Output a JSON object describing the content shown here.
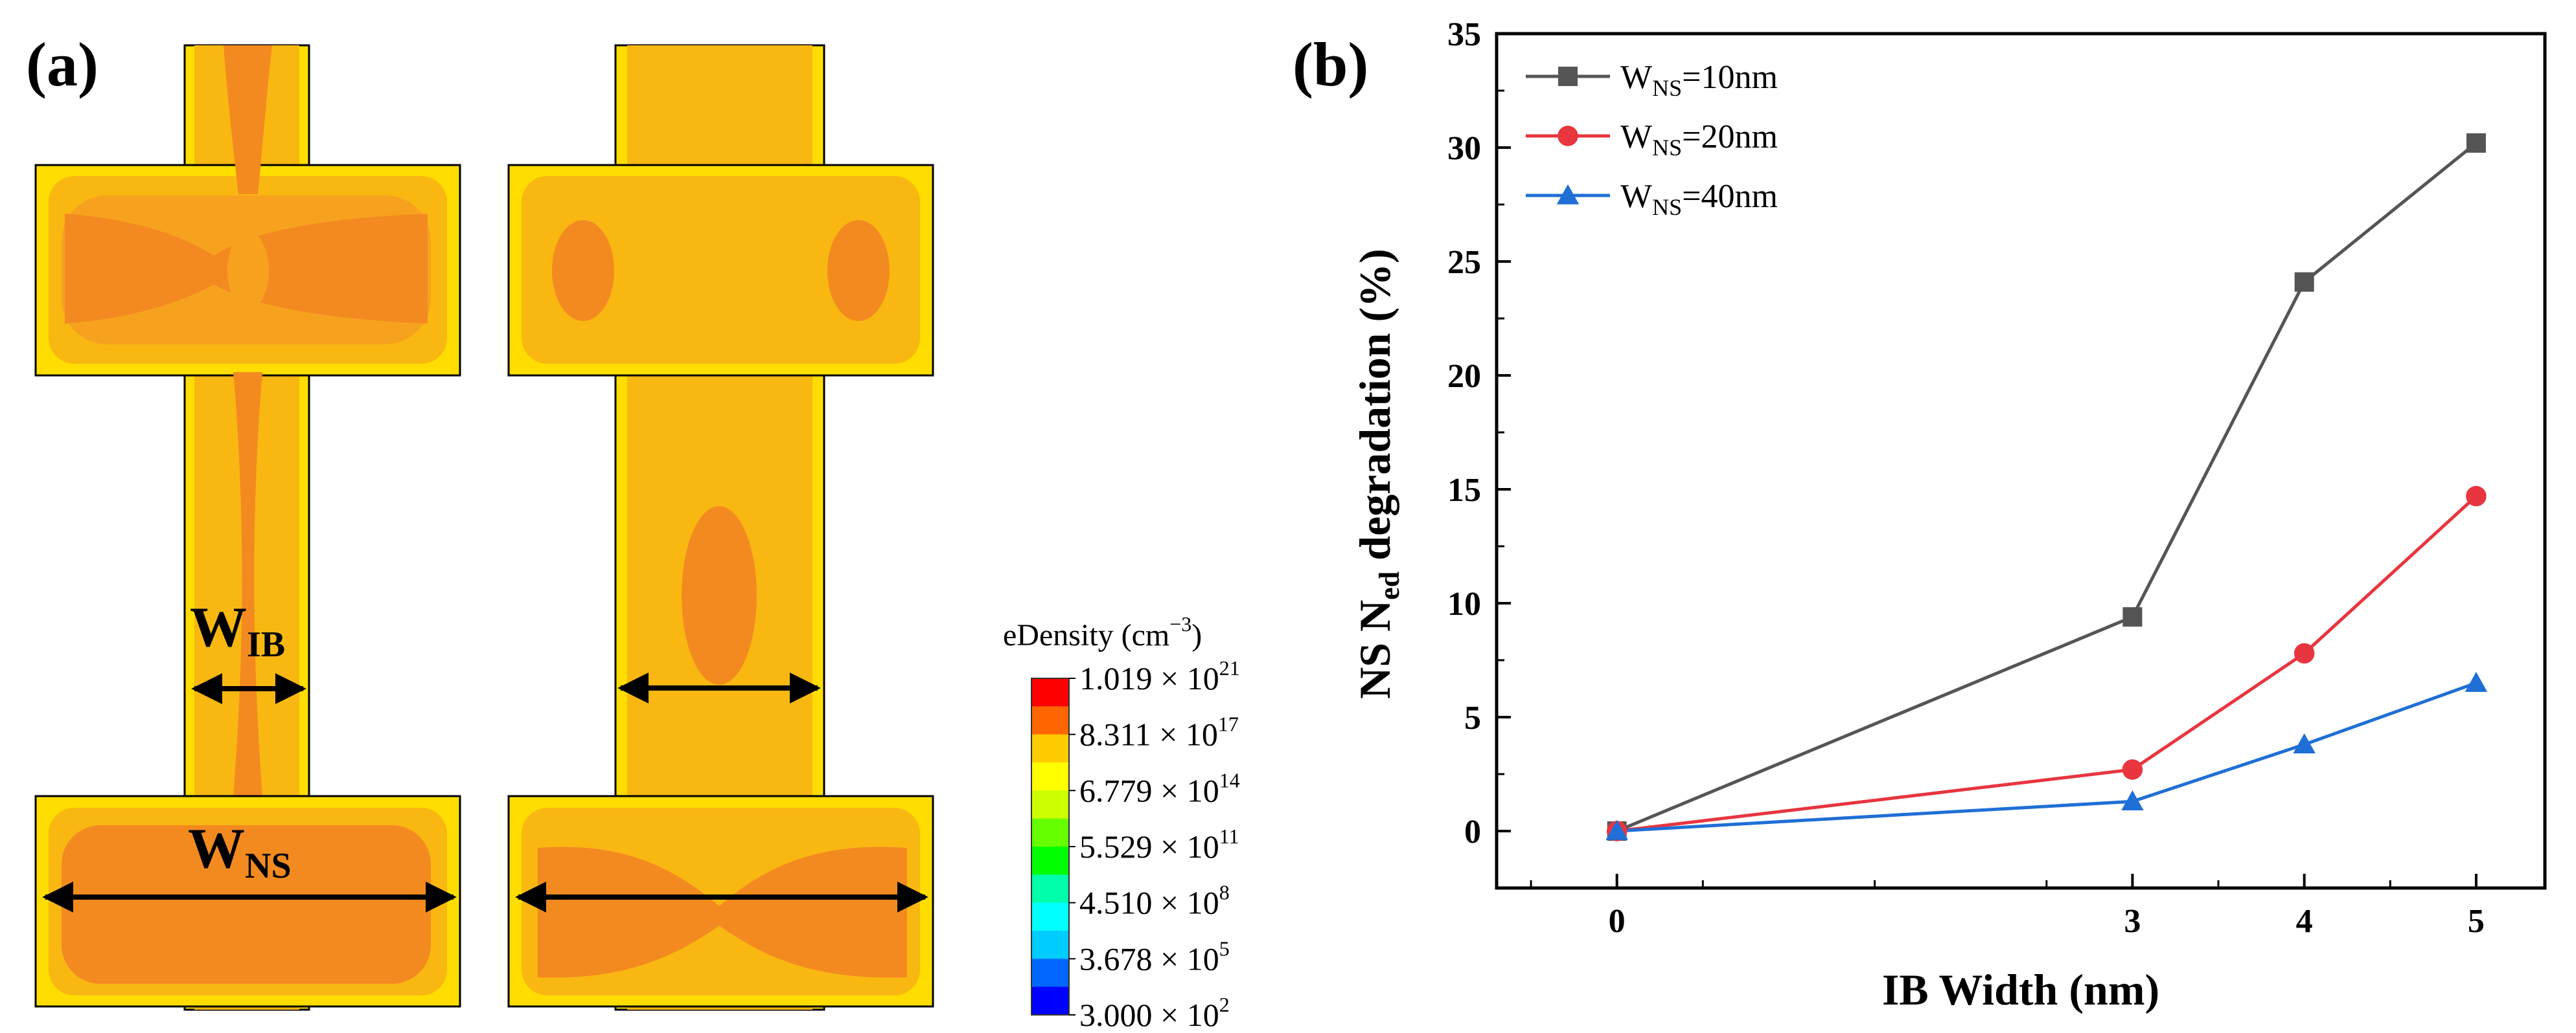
{
  "panel_a": {
    "label": "(a)",
    "structure_left": {
      "label_ib": "W",
      "label_ib_sub": "IB",
      "label_ns": "W",
      "label_ns_sub": "NS"
    },
    "colorbar": {
      "title": "eDensity (cm",
      "title_sup": "−3",
      "title_end": ")",
      "ticks": [
        {
          "mant": "1.019 × 10",
          "exp": "21"
        },
        {
          "mant": "8.311 × 10",
          "exp": "17"
        },
        {
          "mant": "6.779 × 10",
          "exp": "14"
        },
        {
          "mant": "5.529 × 10",
          "exp": "11"
        },
        {
          "mant": "4.510 × 10",
          "exp": "8"
        },
        {
          "mant": "3.678 × 10",
          "exp": "5"
        },
        {
          "mant": "3.000 × 10",
          "exp": "2"
        }
      ],
      "colors": [
        "#ff0000",
        "#ff6600",
        "#ffcc00",
        "#ffff00",
        "#ccff00",
        "#66ff00",
        "#00ff00",
        "#00ffaa",
        "#00ffff",
        "#00ccff",
        "#0066ff",
        "#0000ff"
      ]
    }
  },
  "panel_b": {
    "label": "(b)"
  },
  "chart_data": {
    "type": "line",
    "title": "",
    "xlabel": "IB Width (nm)",
    "ylabel": "NS N",
    "ylabel_sub": "ed",
    "ylabel_end": " degradation (%)",
    "xlim": [
      -0.7,
      5.4
    ],
    "ylim": [
      -2.5,
      35
    ],
    "x_tick_values": [
      0,
      3,
      4,
      5
    ],
    "y_tick_values": [
      0,
      5,
      10,
      15,
      20,
      25,
      30,
      35
    ],
    "legend_position": "top-left",
    "series": [
      {
        "name": "W",
        "name_sub": "NS",
        "name_end": "=10nm",
        "color": "#555555",
        "marker": "square",
        "x": [
          0,
          3,
          4,
          5
        ],
        "y": [
          0,
          9.4,
          24.1,
          30.2
        ]
      },
      {
        "name": "W",
        "name_sub": "NS",
        "name_end": "=20nm",
        "color": "#e8353f",
        "marker": "circle",
        "x": [
          0,
          3,
          4,
          5
        ],
        "y": [
          0,
          2.7,
          7.8,
          14.7
        ]
      },
      {
        "name": "W",
        "name_sub": "NS",
        "name_end": "=40nm",
        "color": "#1f6fd6",
        "marker": "triangle",
        "x": [
          0,
          3,
          4,
          5
        ],
        "y": [
          0,
          1.3,
          3.8,
          6.5
        ]
      }
    ]
  }
}
